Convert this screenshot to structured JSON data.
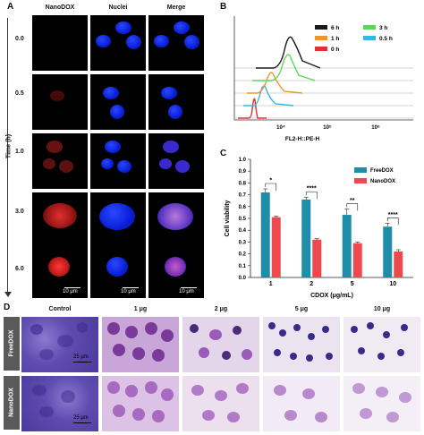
{
  "panels": {
    "A": "A",
    "B": "B",
    "C": "C",
    "D": "D"
  },
  "panelA": {
    "columns": [
      "NanoDOX",
      "Nuclei",
      "Merge"
    ],
    "time_axis_label": "Time (h)",
    "times": [
      "0.0",
      "0.5",
      "1.0",
      "3.0",
      "6.0"
    ],
    "scale_label": "10 μm"
  },
  "panelB": {
    "x_axis_label": "FL2-H::PE-H",
    "x_ticks": [
      "10⁴",
      "10⁵",
      "10⁶"
    ],
    "legend": [
      {
        "label": "6 h",
        "color": "#1a1a1a"
      },
      {
        "label": "3 h",
        "color": "#57d957"
      },
      {
        "label": "1 h",
        "color": "#f0952e"
      },
      {
        "label": "0.5 h",
        "color": "#3ab4e6"
      },
      {
        "label": "0 h",
        "color": "#e03030"
      }
    ]
  },
  "chart_data": {
    "type": "bar",
    "categories": [
      "1",
      "2",
      "5",
      "10"
    ],
    "series": [
      {
        "name": "FreeDOX",
        "values": [
          0.72,
          0.66,
          0.53,
          0.43
        ],
        "errors": [
          0.03,
          0.02,
          0.05,
          0.03
        ],
        "color": "#1e8ea8"
      },
      {
        "name": "NanoDOX",
        "values": [
          0.51,
          0.32,
          0.29,
          0.22
        ],
        "errors": [
          0.01,
          0.01,
          0.01,
          0.015
        ],
        "color": "#ee4a4e"
      }
    ],
    "significance": [
      "*",
      "****",
      "**",
      "****"
    ],
    "xlabel": "CDOX (μg/mL)",
    "ylabel": "Cell viability",
    "ylim": [
      0.0,
      1.0
    ],
    "yticks": [
      "0.0",
      "0.1",
      "0.2",
      "0.3",
      "0.4",
      "0.5",
      "0.6",
      "0.7",
      "0.8",
      "0.9",
      "1.0"
    ]
  },
  "panelD": {
    "columns": [
      "Control",
      "1 μg",
      "2 μg",
      "5 μg",
      "10 μg"
    ],
    "rows": [
      "FreeDOX",
      "NanoDOX"
    ],
    "scale_label": "25 μm"
  }
}
